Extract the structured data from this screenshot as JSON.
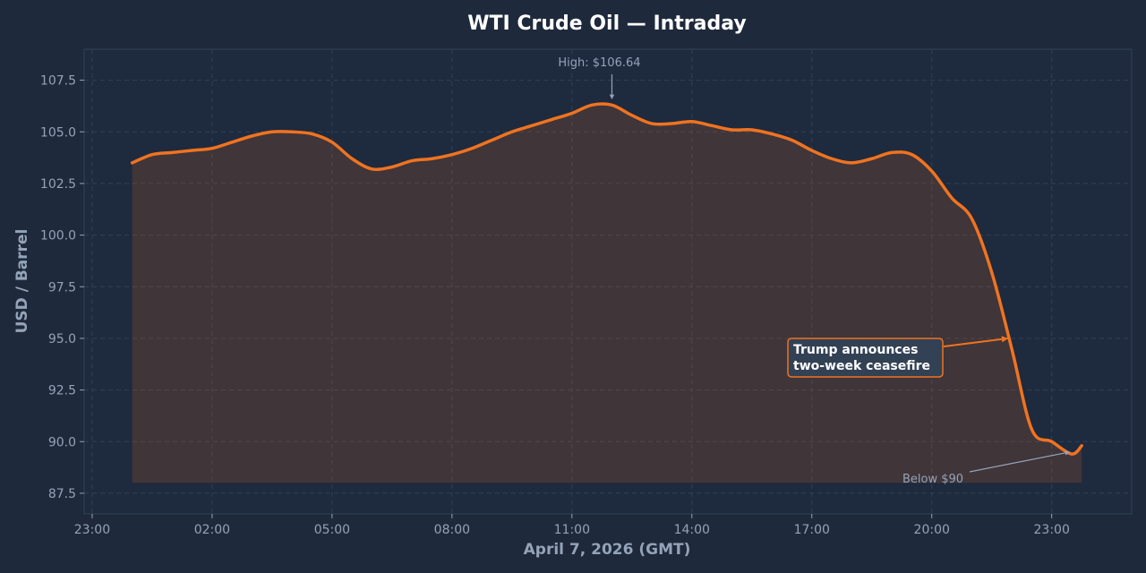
{
  "chart_data": {
    "type": "area",
    "title": "WTI Crude Oil — Intraday",
    "xlabel": "April 7, 2026 (GMT)",
    "ylabel": "USD / Barrel",
    "x_ticks": [
      "23:00",
      "02:00",
      "05:00",
      "08:00",
      "11:00",
      "14:00",
      "17:00",
      "20:00",
      "23:00"
    ],
    "x_tick_hours": [
      -1,
      2,
      5,
      8,
      11,
      14,
      17,
      20,
      23
    ],
    "y_ticks": [
      "87.5",
      "90.0",
      "92.5",
      "95.0",
      "97.5",
      "100.0",
      "102.5",
      "105.0",
      "107.5"
    ],
    "ylim": [
      86.5,
      109
    ],
    "xlim_hours": [
      -1.2,
      25.0
    ],
    "fill_baseline": 88.0,
    "grid": true,
    "colors": {
      "line": "#f07320",
      "fill": "#f07320",
      "background": "#1e293b",
      "plot_background": "#1e2a3e",
      "grid": "#334155",
      "text": "#94a3b8"
    },
    "series": [
      {
        "x_hours": [
          0,
          0.5,
          1,
          1.5,
          2,
          2.5,
          3,
          3.5,
          4,
          4.5,
          5,
          5.5,
          6,
          6.5,
          7,
          7.5,
          8,
          8.5,
          9,
          9.5,
          10,
          10.5,
          11,
          11.5,
          12,
          12.5,
          13,
          13.5,
          14,
          14.5,
          15,
          15.5,
          16,
          16.5,
          17,
          17.5,
          18,
          18.5,
          19,
          19.5,
          20,
          20.5,
          21,
          21.5,
          22,
          22.5,
          23,
          23.5,
          23.75
        ],
        "y": [
          103.5,
          103.9,
          104.0,
          104.1,
          104.2,
          104.5,
          104.8,
          105.0,
          105.0,
          104.9,
          104.5,
          103.7,
          103.2,
          103.3,
          103.6,
          103.7,
          103.9,
          104.2,
          104.6,
          105.0,
          105.3,
          105.6,
          105.9,
          106.3,
          106.3,
          105.8,
          105.4,
          105.4,
          105.5,
          105.3,
          105.1,
          105.1,
          104.9,
          104.6,
          104.1,
          103.7,
          103.5,
          103.7,
          104.0,
          103.9,
          103.1,
          101.8,
          100.8,
          98.2,
          94.5,
          90.6,
          90.0,
          89.4,
          89.8
        ]
      }
    ],
    "annotations": [
      {
        "text": "High: $106.64",
        "x_hour": 12.0,
        "y": 106.4
      },
      {
        "text_lines": [
          "Trump announces",
          "two-week ceasefire"
        ],
        "x_hour": 22.0,
        "y": 95.0
      },
      {
        "text": "Below $90",
        "x_hour": 23.5,
        "y": 89.5
      }
    ]
  }
}
